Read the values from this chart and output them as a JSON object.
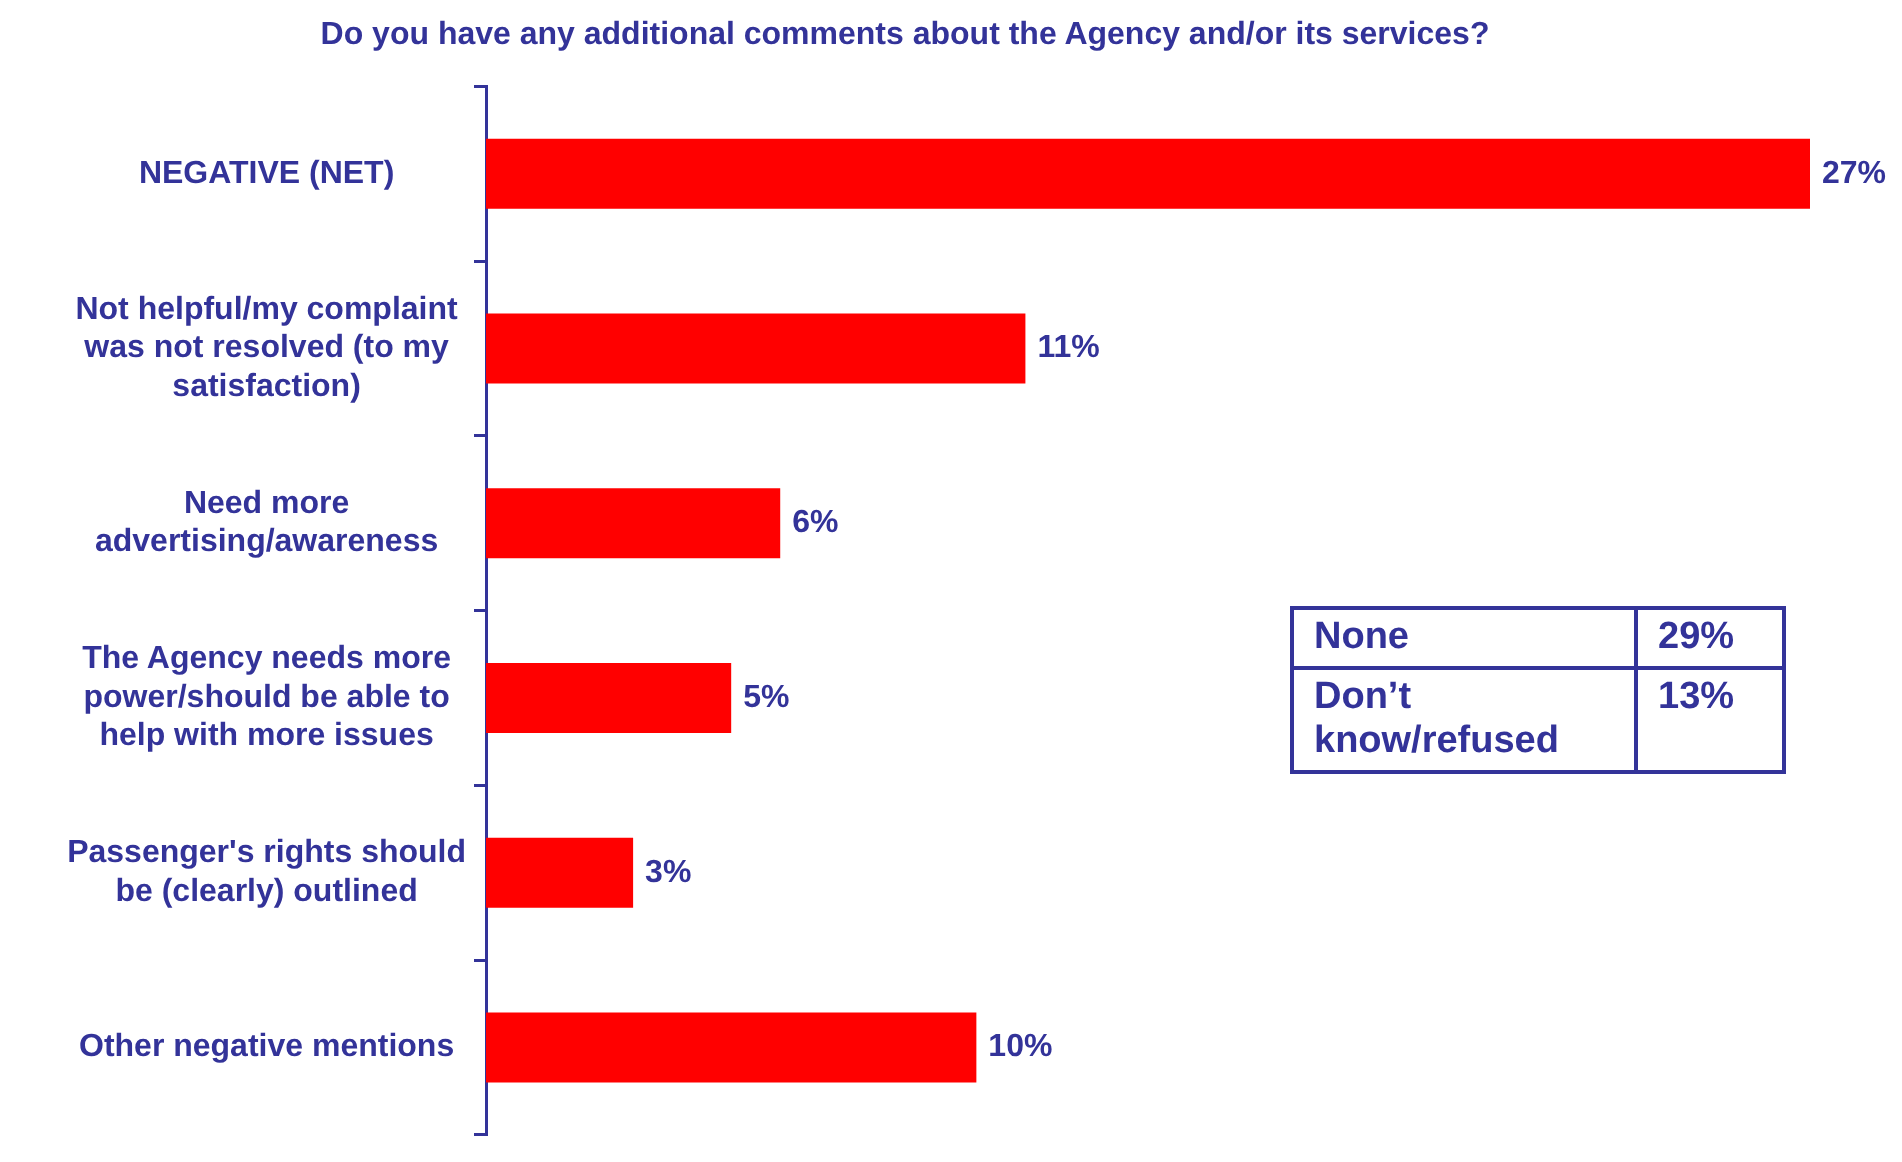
{
  "chart_data": {
    "type": "bar",
    "orientation": "horizontal",
    "title": "Do you have any additional comments about the Agency and/or its services?",
    "categories": [
      "NEGATIVE (NET)",
      "Not helpful/my complaint was not resolved (to my satisfaction)",
      "Need more advertising/awareness",
      "The Agency needs more power/should be able to help with more issues",
      "Passenger's rights should be (clearly) outlined",
      "Other negative mentions"
    ],
    "values": [
      27,
      11,
      6,
      5,
      3,
      10
    ],
    "value_labels": [
      "27%",
      "11%",
      "6%",
      "5%",
      "3%",
      "10%"
    ],
    "color": "#ff0000",
    "tick_labels": "y",
    "grid": false,
    "legend": false,
    "annotations": [
      "None",
      "29%",
      "Don’t know/refused",
      "13%"
    ]
  }
}
